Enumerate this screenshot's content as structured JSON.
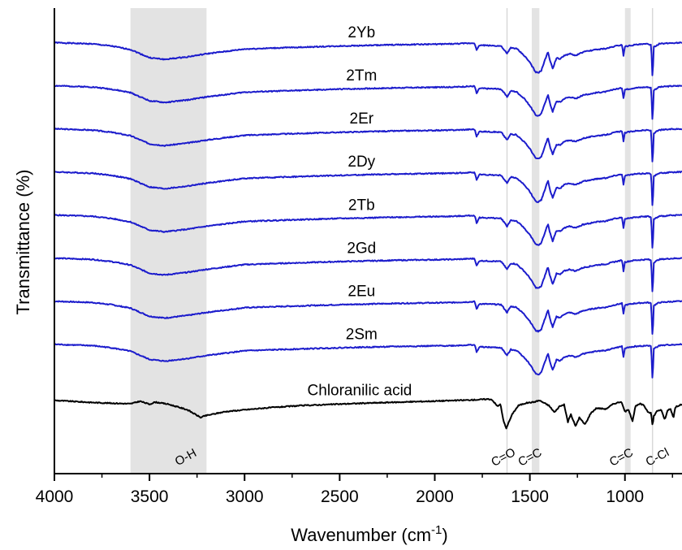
{
  "chart_data": {
    "type": "line",
    "xlabel": "Wavenumber (cm⁻¹)",
    "ylabel": "Transmittance (%)",
    "xlim": [
      4000,
      700
    ],
    "x_reversed": true,
    "x_ticks": [
      4000,
      3500,
      3000,
      2500,
      2000,
      1500,
      1000
    ],
    "x_tick_labels": [
      "4000",
      "3500",
      "3000",
      "2500",
      "2000",
      "1500",
      "1000"
    ],
    "y_ticks_shown": false,
    "grid": false,
    "shaded_regions": [
      {
        "from": 3600,
        "to": 3200,
        "label": "O-H"
      },
      {
        "from": 1490,
        "to": 1450,
        "label": "C=C"
      },
      {
        "from": 1000,
        "to": 970,
        "label": "C=C"
      }
    ],
    "reference_lines": [
      {
        "x": 1620,
        "label": "C=O"
      },
      {
        "x": 855,
        "label": "C-Cl"
      }
    ],
    "series": [
      {
        "name": "2Yb",
        "color": "#1c1ccc",
        "baseline": 100
      },
      {
        "name": "2Tm",
        "color": "#1c1ccc",
        "baseline": 90
      },
      {
        "name": "2Er",
        "color": "#1c1ccc",
        "baseline": 80
      },
      {
        "name": "2Dy",
        "color": "#1c1ccc",
        "baseline": 70
      },
      {
        "name": "2Tb",
        "color": "#1c1ccc",
        "baseline": 60
      },
      {
        "name": "2Gd",
        "color": "#1c1ccc",
        "baseline": 50
      },
      {
        "name": "2Eu",
        "color": "#1c1ccc",
        "baseline": 40
      },
      {
        "name": "2Sm",
        "color": "#1c1ccc",
        "baseline": 30
      },
      {
        "name": "Chloranilic acid",
        "color": "#000000",
        "baseline": 17
      }
    ],
    "spectrum_points": [
      [
        4000,
        0
      ],
      [
        3800,
        -0.3
      ],
      [
        3700,
        -0.8
      ],
      [
        3600,
        -1.6
      ],
      [
        3500,
        -3.5
      ],
      [
        3420,
        -3.9
      ],
      [
        3300,
        -3.3
      ],
      [
        3200,
        -2.6
      ],
      [
        3000,
        -1.5
      ],
      [
        2800,
        -1.2
      ],
      [
        2500,
        -0.8
      ],
      [
        2200,
        -0.5
      ],
      [
        1900,
        -0.3
      ],
      [
        1790,
        -0.1
      ],
      [
        1780,
        -1.8
      ],
      [
        1765,
        -0.6
      ],
      [
        1700,
        -0.7
      ],
      [
        1650,
        -0.8
      ],
      [
        1620,
        -2.6
      ],
      [
        1600,
        -1.2
      ],
      [
        1570,
        -1.4
      ],
      [
        1530,
        -3.0
      ],
      [
        1500,
        -4.6
      ],
      [
        1470,
        -6.8
      ],
      [
        1455,
        -7.0
      ],
      [
        1440,
        -6.5
      ],
      [
        1420,
        -4.0
      ],
      [
        1405,
        -2.0
      ],
      [
        1395,
        -4.0
      ],
      [
        1380,
        -6.0
      ],
      [
        1360,
        -3.6
      ],
      [
        1340,
        -3.8
      ],
      [
        1320,
        -3.0
      ],
      [
        1290,
        -2.6
      ],
      [
        1260,
        -3.0
      ],
      [
        1220,
        -2.2
      ],
      [
        1150,
        -1.6
      ],
      [
        1100,
        -1.4
      ],
      [
        1050,
        -0.8
      ],
      [
        1015,
        -0.5
      ],
      [
        1008,
        -3.0
      ],
      [
        1000,
        -0.9
      ],
      [
        950,
        -0.5
      ],
      [
        880,
        -0.3
      ],
      [
        862,
        -0.5
      ],
      [
        855,
        -8.8
      ],
      [
        848,
        -1.0
      ],
      [
        820,
        -0.3
      ],
      [
        760,
        -0.1
      ],
      [
        700,
        0
      ]
    ],
    "chloranilic_points": [
      [
        4000,
        0
      ],
      [
        3800,
        -0.5
      ],
      [
        3600,
        -0.8
      ],
      [
        3550,
        -0.2
      ],
      [
        3500,
        -0.9
      ],
      [
        3470,
        -0.4
      ],
      [
        3400,
        -0.9
      ],
      [
        3300,
        -2.2
      ],
      [
        3230,
        -4.0
      ],
      [
        3210,
        -3.6
      ],
      [
        3100,
        -2.6
      ],
      [
        2900,
        -1.8
      ],
      [
        2700,
        -1.2
      ],
      [
        2400,
        -0.7
      ],
      [
        2100,
        -0.3
      ],
      [
        1800,
        0.1
      ],
      [
        1720,
        0.3
      ],
      [
        1700,
        0.2
      ],
      [
        1670,
        -1.4
      ],
      [
        1655,
        -0.8
      ],
      [
        1640,
        -4.5
      ],
      [
        1625,
        -6.5
      ],
      [
        1610,
        -5.0
      ],
      [
        1590,
        -3.0
      ],
      [
        1560,
        -1.2
      ],
      [
        1520,
        -0.6
      ],
      [
        1480,
        -0.4
      ],
      [
        1450,
        0.0
      ],
      [
        1400,
        -1.2
      ],
      [
        1370,
        -2.8
      ],
      [
        1345,
        -1.4
      ],
      [
        1320,
        -1.0
      ],
      [
        1300,
        -5.0
      ],
      [
        1285,
        -3.2
      ],
      [
        1260,
        -6.0
      ],
      [
        1240,
        -4.0
      ],
      [
        1210,
        -5.6
      ],
      [
        1180,
        -3.0
      ],
      [
        1150,
        -1.8
      ],
      [
        1100,
        -2.0
      ],
      [
        1060,
        -0.8
      ],
      [
        1020,
        -0.3
      ],
      [
        1000,
        -2.6
      ],
      [
        980,
        -2.2
      ],
      [
        960,
        -4.8
      ],
      [
        945,
        -1.4
      ],
      [
        920,
        -0.8
      ],
      [
        900,
        -1.2
      ],
      [
        880,
        -2.6
      ],
      [
        862,
        -3.0
      ],
      [
        855,
        -6.0
      ],
      [
        848,
        -3.6
      ],
      [
        830,
        -2.4
      ],
      [
        810,
        -2.2
      ],
      [
        790,
        -4.5
      ],
      [
        775,
        -2.2
      ],
      [
        760,
        -2.0
      ],
      [
        745,
        -4.0
      ],
      [
        735,
        -1.6
      ],
      [
        710,
        -1.0
      ],
      [
        700,
        -1.0
      ]
    ],
    "annotations": [
      {
        "text": "O-H",
        "x": 3300
      },
      {
        "text": "C=O",
        "x": 1630
      },
      {
        "text": "C=C",
        "x": 1490
      },
      {
        "text": "C=C",
        "x": 1010
      },
      {
        "text": "C-Cl",
        "x": 820
      }
    ]
  }
}
